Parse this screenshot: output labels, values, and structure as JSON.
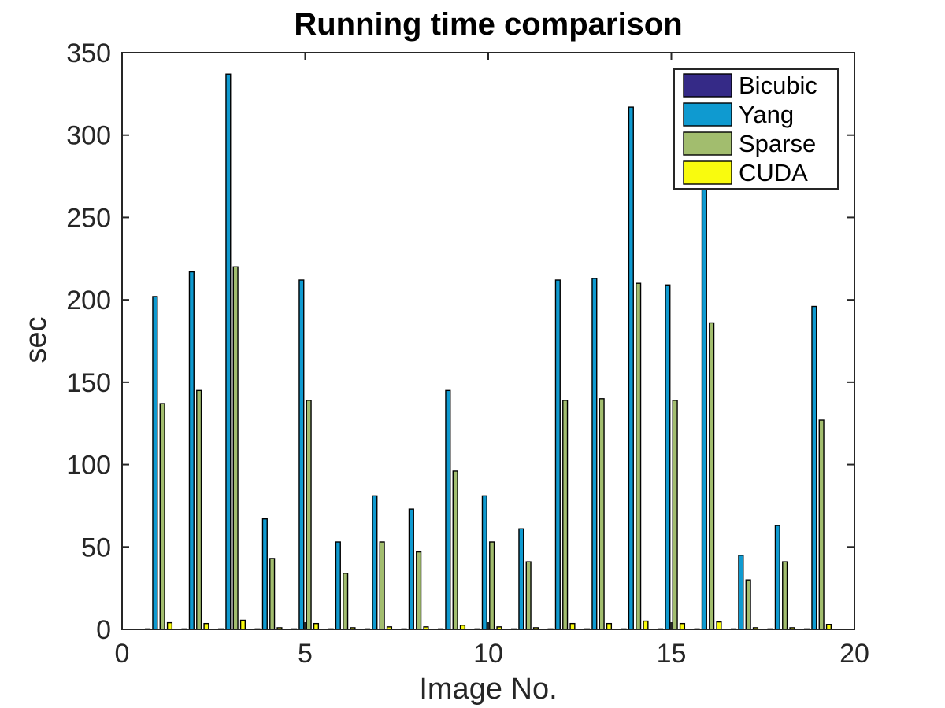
{
  "chart_data": {
    "type": "bar",
    "title": "Running time comparison",
    "xlabel": "Image No.",
    "ylabel": "sec",
    "xlim": [
      0,
      20
    ],
    "ylim": [
      0,
      350
    ],
    "xticks": [
      0,
      5,
      10,
      15,
      20
    ],
    "yticks": [
      0,
      50,
      100,
      150,
      200,
      250,
      300,
      350
    ],
    "grid": false,
    "legend_position": "top-right",
    "x": [
      1,
      2,
      3,
      4,
      5,
      6,
      7,
      8,
      9,
      10,
      11,
      12,
      13,
      14,
      15,
      16,
      17,
      18,
      19
    ],
    "series": [
      {
        "name": "Bicubic",
        "color": "#352a87",
        "values": [
          0.05,
          0.05,
          0.05,
          0.05,
          0.05,
          0.05,
          0.05,
          0.05,
          0.05,
          0.05,
          0.05,
          0.05,
          0.05,
          0.05,
          0.05,
          0.05,
          0.05,
          0.05,
          0.05
        ]
      },
      {
        "name": "Yang",
        "color": "#0f9ad0",
        "values": [
          202,
          217,
          337,
          67,
          212,
          53,
          81,
          73,
          145,
          81,
          61,
          212,
          213,
          317,
          209,
          280,
          45,
          63,
          196
        ]
      },
      {
        "name": "Sparse",
        "color": "#a2bd6e",
        "values": [
          137,
          145,
          220,
          43,
          139,
          34,
          53,
          47,
          96,
          53,
          41,
          139,
          140,
          210,
          139,
          186,
          30,
          41,
          127
        ]
      },
      {
        "name": "CUDA",
        "color": "#f9fb0e",
        "values": [
          4,
          3.5,
          5.5,
          1,
          3.5,
          1,
          1.5,
          1.5,
          2.5,
          1.5,
          1,
          3.5,
          3.5,
          5,
          3.5,
          4.5,
          1,
          1,
          3
        ]
      }
    ]
  }
}
